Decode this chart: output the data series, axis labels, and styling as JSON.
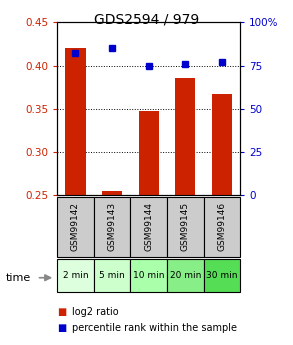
{
  "title": "GDS2594 / 979",
  "samples": [
    "GSM99142",
    "GSM99143",
    "GSM99144",
    "GSM99145",
    "GSM99146"
  ],
  "time_labels": [
    "2 min",
    "5 min",
    "10 min",
    "20 min",
    "30 min"
  ],
  "log2_ratio": [
    0.42,
    0.255,
    0.347,
    0.385,
    0.367
  ],
  "percentile_rank": [
    82,
    85,
    75,
    76,
    77
  ],
  "ylim_left": [
    0.25,
    0.45
  ],
  "ylim_right": [
    0,
    100
  ],
  "yticks_left": [
    0.25,
    0.3,
    0.35,
    0.4,
    0.45
  ],
  "yticks_right": [
    0,
    25,
    50,
    75,
    100
  ],
  "bar_color": "#cc2200",
  "dot_color": "#0000cc",
  "bar_width": 0.55,
  "sample_bg": "#cccccc",
  "time_bg_light": "#ccffcc",
  "time_bg_dark": "#66ee66",
  "legend_bar_label": "log2 ratio",
  "legend_dot_label": "percentile rank within the sample",
  "time_arrow_color": "#888888"
}
